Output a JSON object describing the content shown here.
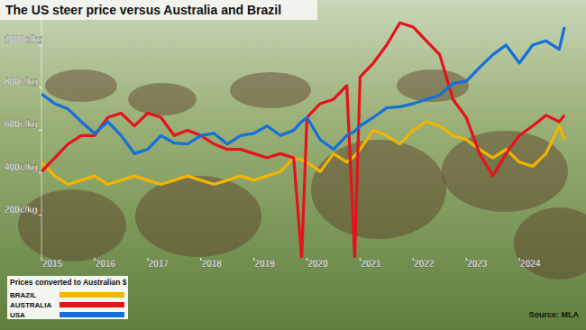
{
  "chart_data": {
    "type": "line",
    "title": "The US steer price versus Australia and Brazil",
    "annotations": [
      "Prices converted to Australian $",
      "Source: MLA"
    ],
    "legend": "lower left",
    "grid": false,
    "xlim": [
      2015,
      2025
    ],
    "xticks": [
      2015,
      2016,
      2017,
      2018,
      2019,
      2020,
      2021,
      2022,
      2023,
      2024
    ],
    "ylim": [
      0,
      1150
    ],
    "yticks": [
      {
        "value": 200,
        "label": "200c/kg"
      },
      {
        "value": 400,
        "label": "400c/kg"
      },
      {
        "value": 600,
        "label": "600c/kg"
      },
      {
        "value": 800,
        "label": "800c/kg"
      },
      {
        "value": 1000,
        "label": "1000c/kg"
      }
    ],
    "x": [
      2015,
      2015.25,
      2015.5,
      2015.75,
      2016,
      2016.25,
      2016.5,
      2016.75,
      2017,
      2017.25,
      2017.5,
      2017.75,
      2018,
      2018.25,
      2018.5,
      2018.75,
      2019,
      2019.25,
      2019.5,
      2019.75,
      2019.9,
      2020,
      2020.25,
      2020.5,
      2020.75,
      2020.9,
      2021,
      2021.25,
      2021.5,
      2021.75,
      2022,
      2022.25,
      2022.5,
      2022.75,
      2023,
      2023.25,
      2023.5,
      2023.75,
      2024,
      2024.25,
      2024.5,
      2024.75,
      2024.85
    ],
    "series": [
      {
        "name": "BRAZIL",
        "color": "#f5b400",
        "values": [
          450,
          385,
          345,
          365,
          385,
          345,
          365,
          385,
          365,
          345,
          365,
          385,
          365,
          345,
          365,
          385,
          365,
          385,
          405,
          470,
          460,
          450,
          405,
          490,
          450,
          480,
          510,
          600,
          575,
          535,
          600,
          640,
          620,
          575,
          555,
          510,
          470,
          510,
          450,
          430,
          490,
          620,
          555
        ]
      },
      {
        "name": "AUSTRALIA",
        "color": "#e3141b",
        "values": [
          405,
          470,
          535,
          575,
          575,
          660,
          680,
          620,
          680,
          660,
          575,
          600,
          575,
          535,
          510,
          510,
          490,
          470,
          490,
          470,
          0,
          660,
          725,
          745,
          810,
          0,
          850,
          915,
          1000,
          1105,
          1085,
          1020,
          955,
          745,
          660,
          490,
          385,
          490,
          575,
          620,
          670,
          640,
          670
        ]
      },
      {
        "name": "USA",
        "color": "#1570d8",
        "values": [
          770,
          725,
          700,
          640,
          585,
          640,
          575,
          490,
          510,
          575,
          540,
          535,
          575,
          585,
          535,
          575,
          585,
          620,
          575,
          600,
          640,
          660,
          555,
          510,
          575,
          595,
          620,
          660,
          705,
          710,
          725,
          745,
          765,
          820,
          830,
          895,
          955,
          1000,
          915,
          1000,
          1020,
          980,
          1085
        ]
      }
    ]
  }
}
